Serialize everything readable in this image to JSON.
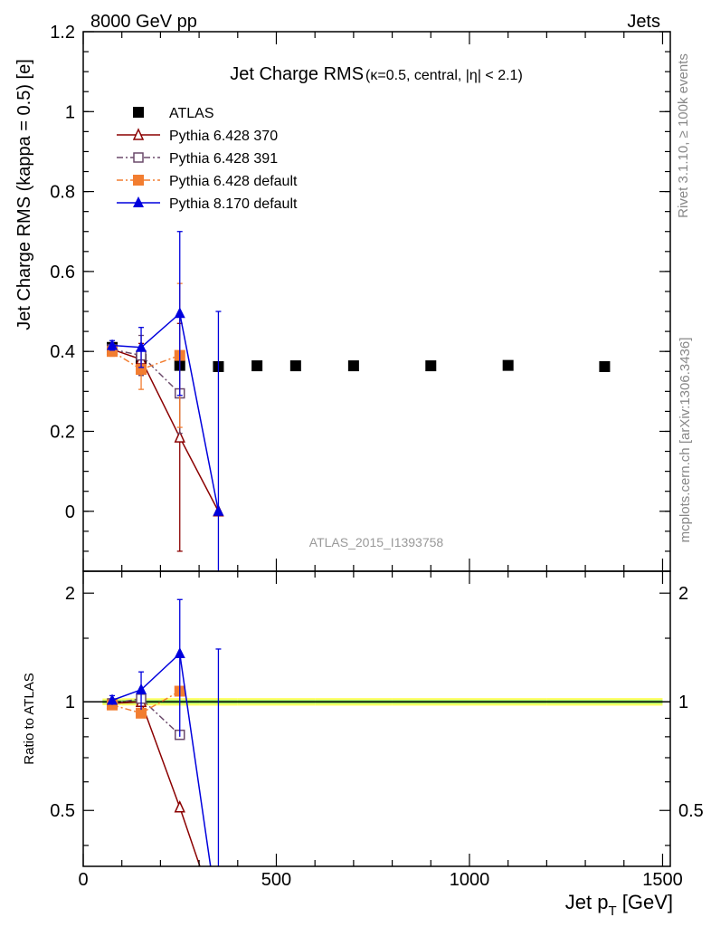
{
  "header": {
    "left": "8000 GeV pp",
    "right": "Jets"
  },
  "side_labels": {
    "rivet": "Rivet 3.1.10, ≥ 100k events",
    "mcplots": "mcplots.cern.ch [arXiv:1306.3436]"
  },
  "chart_data": [
    {
      "type": "scatter",
      "title_main": "Jet Charge RMS",
      "title_sub": "(κ=0.5, central, |η| < 2.1)",
      "ylabel": "Jet Charge RMS (kappa = 0.5) [e]",
      "xlim": [
        0,
        1520
      ],
      "ylim": [
        -0.15,
        1.2
      ],
      "yticks": [
        0,
        0.2,
        0.4,
        0.6,
        0.8,
        1,
        1.2
      ],
      "ytick_labels": [
        "0",
        "0.2",
        "0.4",
        "0.6",
        "0.8",
        "1",
        "1.2"
      ],
      "watermark": "ATLAS_2015_I1393758",
      "legend": {
        "position": "top-left"
      },
      "series": [
        {
          "name": "ATLAS",
          "color": "#000000",
          "marker": "square-filled",
          "line": "none",
          "x": [
            75,
            150,
            250,
            350,
            450,
            550,
            700,
            900,
            1100,
            1350
          ],
          "y": [
            0.41,
            0.38,
            0.365,
            0.362,
            0.364,
            0.364,
            0.364,
            0.364,
            0.365,
            0.362
          ],
          "err": [
            0.004,
            0.004,
            0.004,
            0.004,
            0.004,
            0.004,
            0.004,
            0.004,
            0.004,
            0.004
          ]
        },
        {
          "name": "Pythia 6.428 370",
          "color": "#8b0000",
          "marker": "triangle-open",
          "line": "solid",
          "x": [
            75,
            150,
            250,
            350
          ],
          "y": [
            0.405,
            0.38,
            0.185,
            0.0
          ],
          "err": [
            0.012,
            0.04,
            0.285,
            0.0
          ]
        },
        {
          "name": "Pythia 6.428 391",
          "color": "#6b4a6b",
          "marker": "square-open",
          "line": "dashdot",
          "x": [
            75,
            150,
            250
          ],
          "y": [
            0.405,
            0.39,
            0.295
          ],
          "err": [
            0.012,
            0.05,
            0.1
          ]
        },
        {
          "name": "Pythia 6.428 default",
          "color": "#f27d30",
          "marker": "square-filled",
          "line": "dashdot",
          "x": [
            75,
            150,
            250
          ],
          "y": [
            0.4,
            0.355,
            0.39
          ],
          "err": [
            0.012,
            0.05,
            0.18
          ]
        },
        {
          "name": "Pythia 8.170 default",
          "color": "#0000dd",
          "marker": "triangle-filled",
          "line": "solid",
          "x": [
            75,
            150,
            250,
            350
          ],
          "y": [
            0.415,
            0.41,
            0.495,
            0.0
          ],
          "err": [
            0.012,
            0.05,
            0.205,
            0.5
          ]
        }
      ]
    },
    {
      "type": "line",
      "ylabel": "Ratio to ATLAS",
      "xlabel": "Jet p_T [GeV]",
      "xlim": [
        0,
        1520
      ],
      "xticks": [
        0,
        500,
        1000,
        1500
      ],
      "xtick_labels": [
        "0",
        "500",
        "1000",
        "1500"
      ],
      "ylim": [
        0.35,
        2.3
      ],
      "yscale": "log",
      "yticks": [
        0.5,
        1,
        2
      ],
      "ytick_labels": [
        "0.5",
        "1",
        "2"
      ],
      "band_colors": [
        "#ffff66",
        "#99ee66"
      ],
      "series": [
        {
          "name": "Pythia 6.428 370",
          "color": "#8b0000",
          "marker": "triangle-open",
          "line": "solid",
          "x": [
            75,
            150,
            250,
            350
          ],
          "y": [
            0.99,
            1.0,
            0.51,
            0.0
          ]
        },
        {
          "name": "Pythia 6.428 391",
          "color": "#6b4a6b",
          "marker": "square-open",
          "line": "dashdot",
          "x": [
            75,
            150,
            250
          ],
          "y": [
            0.99,
            1.02,
            0.81
          ]
        },
        {
          "name": "Pythia 6.428 default",
          "color": "#f27d30",
          "marker": "square-filled",
          "line": "dashdot",
          "x": [
            75,
            150,
            250
          ],
          "y": [
            0.98,
            0.93,
            1.07
          ]
        },
        {
          "name": "Pythia 8.170 default",
          "color": "#0000dd",
          "marker": "triangle-filled",
          "line": "solid",
          "x": [
            75,
            150,
            250,
            350
          ],
          "y": [
            1.01,
            1.08,
            1.36,
            0.0
          ],
          "err": [
            0.03,
            0.13,
            0.56,
            1.4
          ]
        }
      ]
    }
  ]
}
